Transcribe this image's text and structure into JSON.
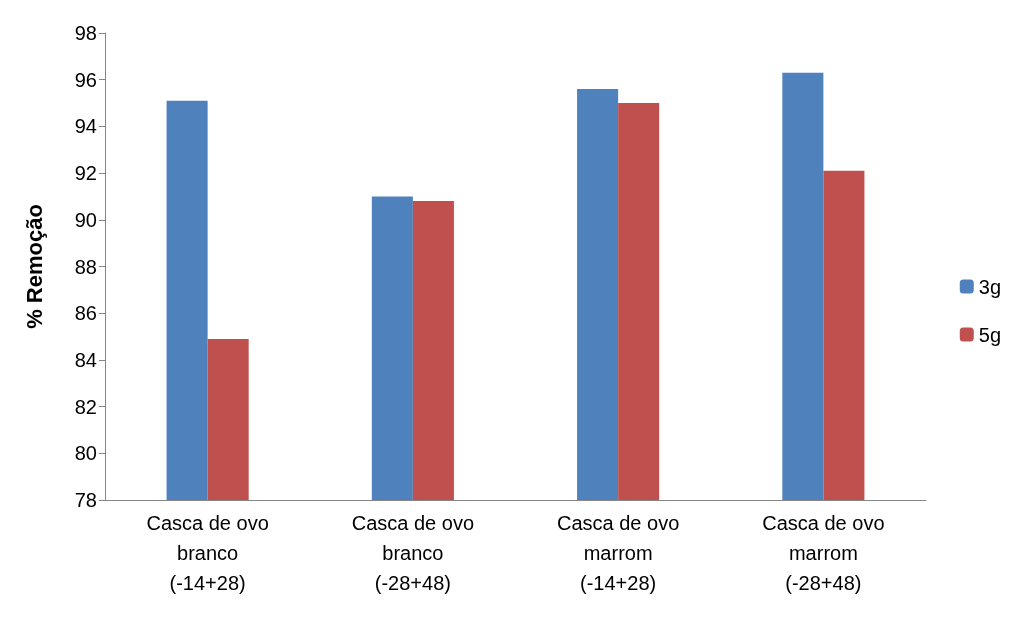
{
  "chart_data": {
    "type": "bar",
    "ylabel": "% Remoção",
    "categories": [
      "Casca de ovo\nbranco\n(-14+28)",
      "Casca de ovo\nbranco\n(-28+48)",
      "Casca de ovo\nmarrom\n(-14+28)",
      "Casca de ovo\nmarrom\n(-28+48)"
    ],
    "series": [
      {
        "name": "3g",
        "color": "#4f81bd",
        "values": [
          95.1,
          91.0,
          95.6,
          96.3
        ]
      },
      {
        "name": "5g",
        "color": "#c0504d",
        "values": [
          84.9,
          90.8,
          95.0,
          92.1
        ]
      }
    ],
    "ylim": [
      78,
      98
    ],
    "yticks": [
      78,
      80,
      82,
      84,
      86,
      88,
      90,
      92,
      94,
      96,
      98
    ],
    "grid": false,
    "legend": "right"
  }
}
